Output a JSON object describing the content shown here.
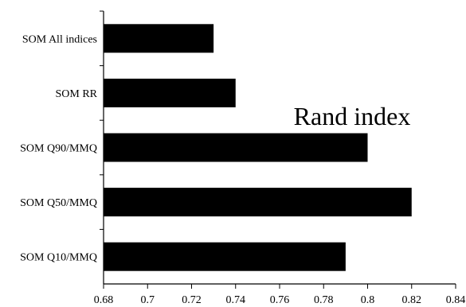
{
  "chart_data": {
    "type": "bar",
    "orientation": "horizontal",
    "title": "",
    "annotation": "Rand index",
    "xlabel": "",
    "ylabel": "",
    "categories": [
      "SOM All indices",
      "SOM RR",
      "SOM Q90/MMQ",
      "SOM Q50/MMQ",
      "SOM Q10/MMQ"
    ],
    "values": [
      0.73,
      0.74,
      0.8,
      0.82,
      0.79
    ],
    "xlim": [
      0.68,
      0.84
    ],
    "xticks": [
      "0.68",
      "0.7",
      "0.72",
      "0.74",
      "0.76",
      "0.78",
      "0.8",
      "0.82",
      "0.84"
    ],
    "grid": false,
    "bar_color": "#000000"
  }
}
